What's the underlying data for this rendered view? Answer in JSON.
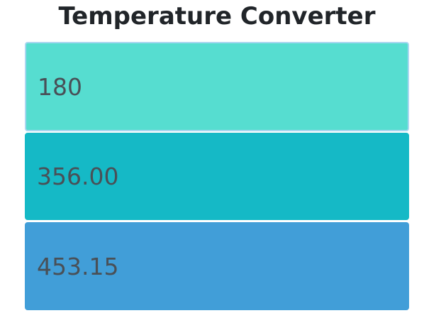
{
  "title": "Temperature Converter",
  "fields": {
    "celsius": {
      "value": "180",
      "color": "#56ddd0"
    },
    "fahrenheit": {
      "value": "356.00",
      "color": "#15b9c6"
    },
    "kelvin": {
      "value": "453.15",
      "color": "#419ed8"
    }
  },
  "colors": {
    "text": "#495057",
    "title": "#212529",
    "focus_border": "#a9d6f0"
  }
}
